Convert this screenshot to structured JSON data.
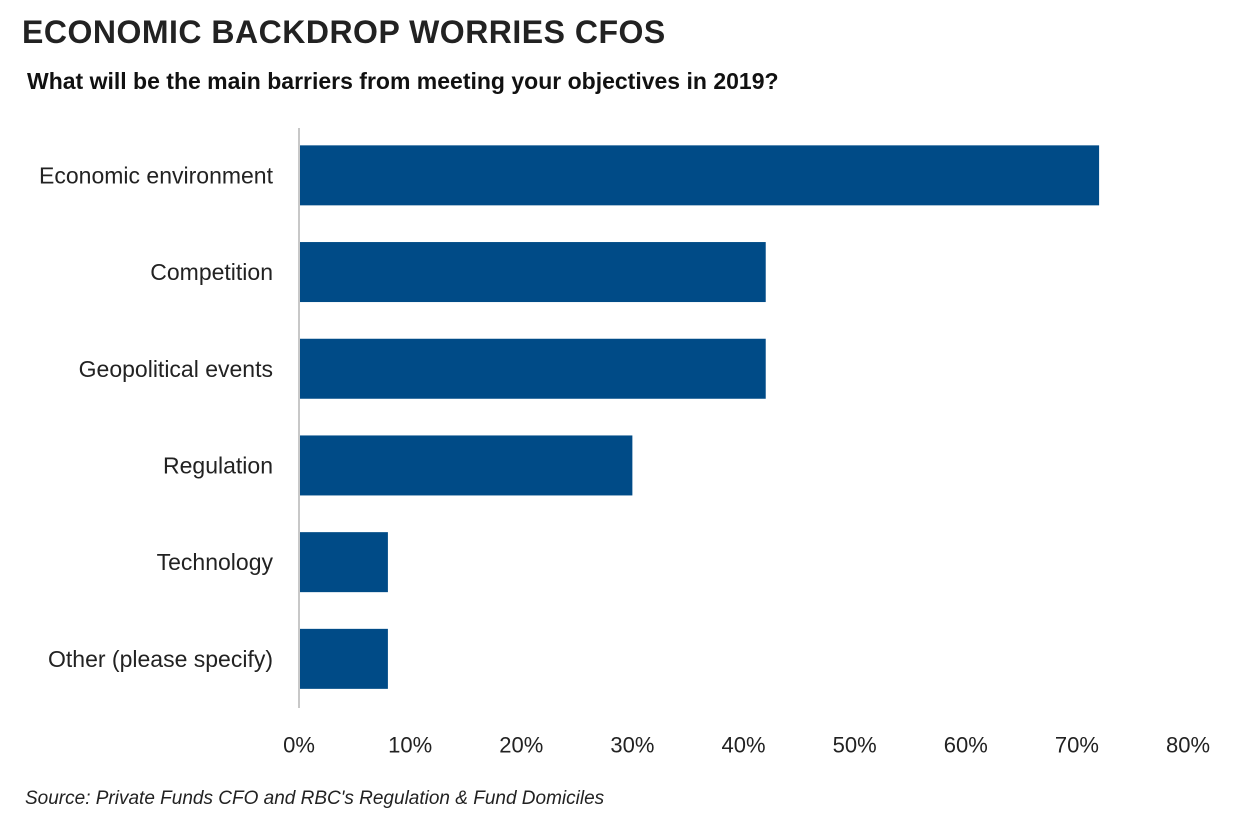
{
  "chart_data": {
    "type": "bar",
    "orientation": "horizontal",
    "title": "ECONOMIC BACKDROP WORRIES CFOS",
    "subtitle": "What will be the main barriers from meeting your objectives in 2019?",
    "source": "Source: Private Funds CFO and RBC's Regulation & Fund Domiciles",
    "categories": [
      "Economic environment",
      "Competition",
      "Geopolitical events",
      "Regulation",
      "Technology",
      "Other (please specify)"
    ],
    "values": [
      72,
      42,
      42,
      30,
      8,
      8
    ],
    "xlim": [
      0,
      80
    ],
    "x_ticks": [
      "0%",
      "10%",
      "20%",
      "30%",
      "40%",
      "50%",
      "60%",
      "70%",
      "80%"
    ],
    "bar_color": "#004b87",
    "axis_color": "#c8c8c8",
    "grid": false,
    "legend": "none"
  }
}
